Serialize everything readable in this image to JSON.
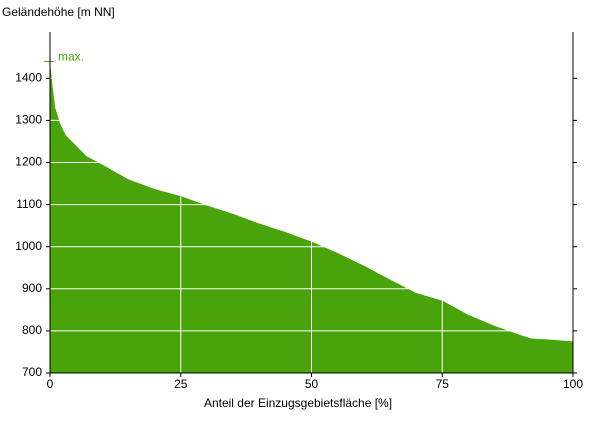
{
  "chart_data": {
    "type": "area",
    "y_label": "Geländehöhe [m NN]",
    "x_label": "Anteil der Einzugsgebietsfläche [%]",
    "color": "#48a40a",
    "max_marker": {
      "label": "max.",
      "value": 1440
    },
    "x": [
      0,
      0.5,
      1,
      2,
      3,
      5,
      7,
      10,
      15,
      20,
      25,
      30,
      35,
      40,
      45,
      50,
      55,
      60,
      65,
      70,
      75,
      80,
      85,
      90,
      92,
      95,
      100
    ],
    "values": [
      1440,
      1380,
      1330,
      1290,
      1265,
      1240,
      1215,
      1195,
      1160,
      1137,
      1120,
      1098,
      1078,
      1055,
      1035,
      1012,
      985,
      955,
      922,
      890,
      872,
      838,
      812,
      790,
      782,
      780,
      775
    ],
    "xlim": [
      0,
      100
    ],
    "xticks": [
      0,
      25,
      50,
      75,
      100
    ],
    "ylim": [
      700,
      1510
    ],
    "yticks": [
      700,
      800,
      900,
      1000,
      1100,
      1200,
      1300,
      1400
    ],
    "grid": true
  }
}
